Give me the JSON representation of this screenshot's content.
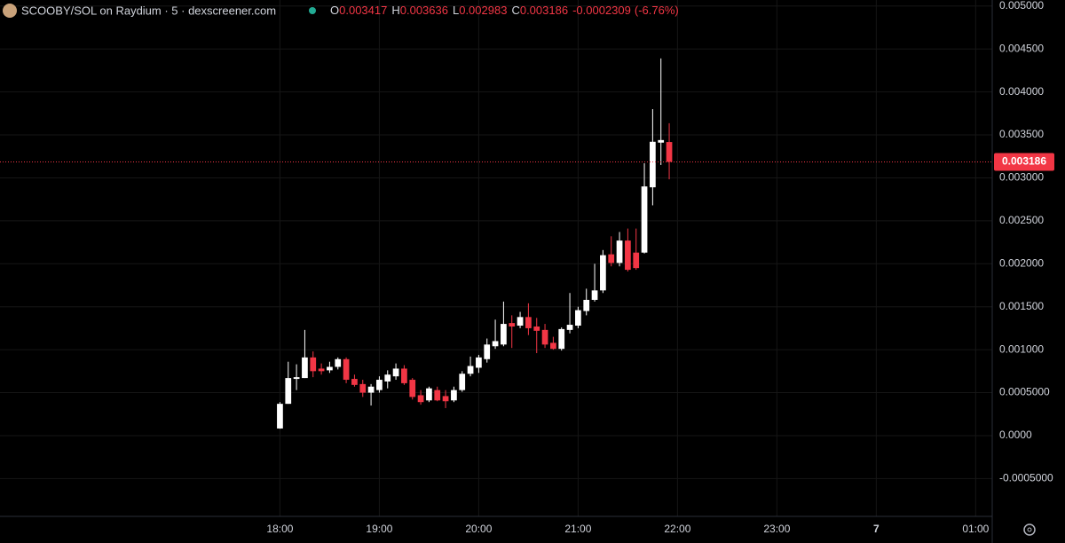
{
  "header": {
    "title": "SCOOBY/SOL on Raydium · 5 · dexscreener.com",
    "ohlc_labels": [
      "O",
      "H",
      "L",
      "C"
    ],
    "ohlc_values": [
      0.003417,
      0.003636,
      0.002983,
      0.003186
    ],
    "change": -0.0002309,
    "change_pct": "(-6.76%)"
  },
  "chart_data": {
    "type": "candlestick",
    "x": [
      1080,
      1085,
      1090,
      1095,
      1100,
      1105,
      1110,
      1115,
      1120,
      1125,
      1130,
      1135,
      1140,
      1145,
      1150,
      1155,
      1160,
      1165,
      1170,
      1175,
      1180,
      1185,
      1190,
      1195,
      1200,
      1205,
      1210,
      1215,
      1220,
      1225,
      1230,
      1235,
      1240,
      1245,
      1250,
      1255,
      1260,
      1265,
      1270,
      1275,
      1280,
      1285,
      1290,
      1295,
      1300,
      1305,
      1310,
      1315
    ],
    "open": [
      8.3e-05,
      0.00037,
      0.00066,
      0.00067,
      0.00091,
      0.00078,
      0.00076,
      0.0008,
      0.00089,
      0.00066,
      0.0006,
      0.0005,
      0.00053,
      0.00063,
      0.00069,
      0.00078,
      0.00065,
      0.00047,
      0.00041,
      0.00053,
      0.00046,
      0.00041,
      0.00053,
      0.00072,
      0.00079,
      0.00089,
      0.00104,
      0.00106,
      0.00131,
      0.00128,
      0.00138,
      0.00127,
      0.00123,
      0.00108,
      0.00101,
      0.00123,
      0.00128,
      0.00145,
      0.00158,
      0.00169,
      0.00211,
      0.00201,
      0.00227,
      0.00213,
      0.00213,
      0.00289,
      0.00341,
      0.003417
    ],
    "high": [
      0.00039,
      0.00086,
      0.00083,
      0.00123,
      0.00098,
      0.00084,
      0.00086,
      0.00091,
      0.00091,
      0.00071,
      0.00065,
      0.0006,
      0.00069,
      0.00076,
      0.00084,
      0.00082,
      0.00067,
      0.00053,
      0.00057,
      0.00057,
      0.00053,
      0.00057,
      0.00075,
      0.00092,
      0.00094,
      0.00113,
      0.00135,
      0.00156,
      0.0014,
      0.00144,
      0.00154,
      0.00137,
      0.0013,
      0.00115,
      0.00126,
      0.00166,
      0.0015,
      0.00171,
      0.002,
      0.00216,
      0.00232,
      0.00237,
      0.00241,
      0.00241,
      0.00317,
      0.0038,
      0.00439,
      0.003636
    ],
    "low": [
      8e-05,
      0.00037,
      0.00053,
      0.00067,
      0.00068,
      0.00071,
      0.00073,
      0.00077,
      0.00061,
      0.00057,
      0.00045,
      0.00035,
      0.0005,
      0.00055,
      0.00065,
      0.00059,
      0.00042,
      0.00036,
      0.00039,
      0.0004,
      0.00032,
      0.00039,
      0.00051,
      0.00069,
      0.00073,
      0.00085,
      0.00101,
      0.00104,
      0.00102,
      0.00125,
      0.00117,
      0.00096,
      0.00102,
      0.001,
      0.00099,
      0.00119,
      0.00125,
      0.0014,
      0.00156,
      0.00166,
      0.00197,
      0.00197,
      0.00191,
      0.00193,
      0.00212,
      0.00268,
      0.00315,
      0.002983
    ],
    "close": [
      0.00037,
      0.00067,
      0.00068,
      0.00091,
      0.00075,
      0.00075,
      0.0008,
      0.00089,
      0.00065,
      0.00059,
      0.0005,
      0.00057,
      0.00065,
      0.00071,
      0.00078,
      0.00061,
      0.00045,
      0.00039,
      0.00055,
      0.00041,
      0.0004,
      0.00053,
      0.00072,
      0.00081,
      0.00091,
      0.00106,
      0.0011,
      0.0013,
      0.00127,
      0.00138,
      0.00125,
      0.00122,
      0.00106,
      0.00101,
      0.00124,
      0.00129,
      0.00146,
      0.00158,
      0.00169,
      0.0021,
      0.00201,
      0.00227,
      0.00193,
      0.00195,
      0.0029,
      0.00342,
      0.00344,
      0.003186
    ],
    "up_color": "#ffffff",
    "down_color": "#f23645",
    "last_price": 0.003186,
    "xlim": [
      911,
      1510
    ],
    "xticks": [
      {
        "value": 1080,
        "label": "18:00"
      },
      {
        "value": 1140,
        "label": "19:00"
      },
      {
        "value": 1200,
        "label": "20:00"
      },
      {
        "value": 1260,
        "label": "21:00"
      },
      {
        "value": 1320,
        "label": "22:00"
      },
      {
        "value": 1380,
        "label": "23:00"
      },
      {
        "value": 1440,
        "label": "7"
      },
      {
        "value": 1500,
        "label": "01:00"
      }
    ],
    "ylim": [
      -0.00094,
      0.00507
    ],
    "yticks": [
      {
        "value": 0.005,
        "label": "0.005000"
      },
      {
        "value": 0.0045,
        "label": "0.004500"
      },
      {
        "value": 0.004,
        "label": "0.004000"
      },
      {
        "value": 0.0035,
        "label": "0.003500"
      },
      {
        "value": 0.003,
        "label": "0.003000"
      },
      {
        "value": 0.0025,
        "label": "0.002500"
      },
      {
        "value": 0.002,
        "label": "0.002000"
      },
      {
        "value": 0.0015,
        "label": "0.001500"
      },
      {
        "value": 0.001,
        "label": "0.001000"
      },
      {
        "value": 0.0005,
        "label": "0.0005000"
      },
      {
        "value": 0,
        "label": "0.0000"
      },
      {
        "value": -0.0005,
        "label": "-0.0005000"
      }
    ],
    "grid": true
  }
}
